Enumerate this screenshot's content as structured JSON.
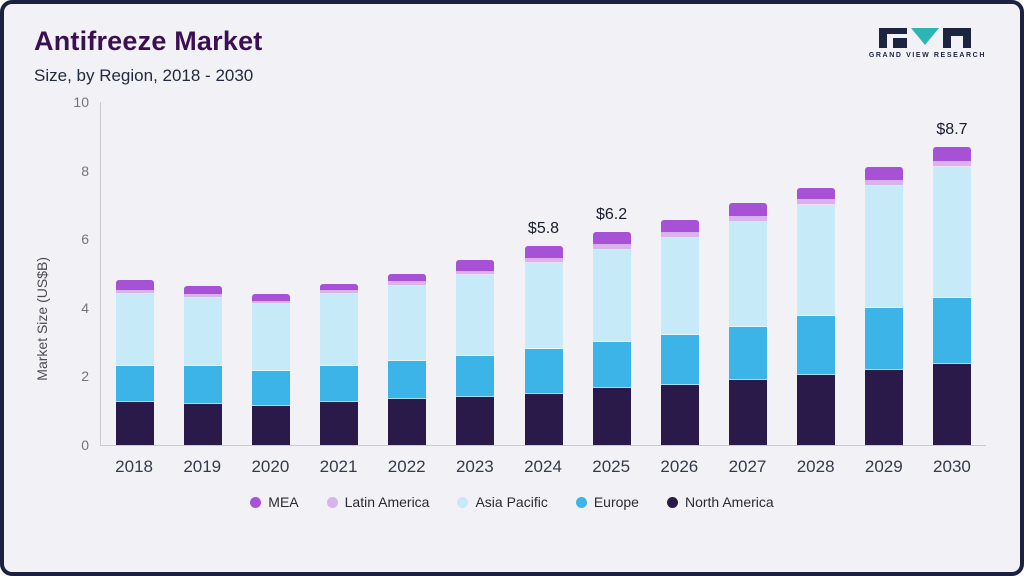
{
  "header": {
    "title": "Antifreeze Market",
    "subtitle": "Size, by Region, 2018 - 2030",
    "logo_text": "GRAND VIEW RESEARCH"
  },
  "colors": {
    "title_accent": "#3b1053",
    "frame_border": "#1b2240",
    "background": "#f2f1f6",
    "logo_dark": "#1c2440",
    "logo_teal": "#2cb5b2"
  },
  "chart_data": {
    "type": "bar",
    "stacked": true,
    "title": "Antifreeze Market Size, by Region, 2018 - 2030",
    "ylabel": "Market Size (US$B)",
    "xlabel": "",
    "ylim": [
      0,
      10
    ],
    "yticks": [
      0,
      2,
      4,
      6,
      8,
      10
    ],
    "grid": false,
    "legend_position": "bottom",
    "legend_order_left_to_right": [
      "MEA",
      "Latin America",
      "Asia Pacific",
      "Europe",
      "North America"
    ],
    "categories": [
      "2018",
      "2019",
      "2020",
      "2021",
      "2022",
      "2023",
      "2024",
      "2025",
      "2026",
      "2027",
      "2028",
      "2029",
      "2030"
    ],
    "stack_order": "bottom_to_top",
    "series": [
      {
        "name": "North America",
        "color": "#2a1a4a",
        "values": [
          1.25,
          1.2,
          1.15,
          1.25,
          1.35,
          1.4,
          1.5,
          1.65,
          1.75,
          1.9,
          2.05,
          2.2,
          2.35
        ]
      },
      {
        "name": "Europe",
        "color": "#3cb4e7",
        "values": [
          1.05,
          1.1,
          1.0,
          1.05,
          1.1,
          1.2,
          1.3,
          1.35,
          1.45,
          1.55,
          1.7,
          1.8,
          1.95
        ]
      },
      {
        "name": "Asia Pacific",
        "color": "#c7eaf8",
        "values": [
          2.1,
          2.0,
          1.95,
          2.1,
          2.2,
          2.35,
          2.5,
          2.7,
          2.85,
          3.05,
          3.25,
          3.55,
          3.8
        ]
      },
      {
        "name": "Latin America",
        "color": "#d9b3ec",
        "values": [
          0.1,
          0.08,
          0.08,
          0.08,
          0.1,
          0.1,
          0.12,
          0.12,
          0.12,
          0.15,
          0.15,
          0.15,
          0.15
        ]
      },
      {
        "name": "MEA",
        "color": "#a651d6",
        "values": [
          0.3,
          0.27,
          0.22,
          0.22,
          0.25,
          0.35,
          0.38,
          0.38,
          0.38,
          0.4,
          0.35,
          0.4,
          0.45
        ]
      }
    ],
    "totals": [
      4.8,
      4.65,
      4.4,
      4.7,
      5.0,
      5.4,
      5.8,
      6.2,
      6.55,
      7.05,
      7.5,
      8.1,
      8.7
    ],
    "annotations": [
      {
        "year": "2024",
        "text": "$5.8"
      },
      {
        "year": "2025",
        "text": "$6.2"
      },
      {
        "year": "2030",
        "text": "$8.7"
      }
    ]
  }
}
